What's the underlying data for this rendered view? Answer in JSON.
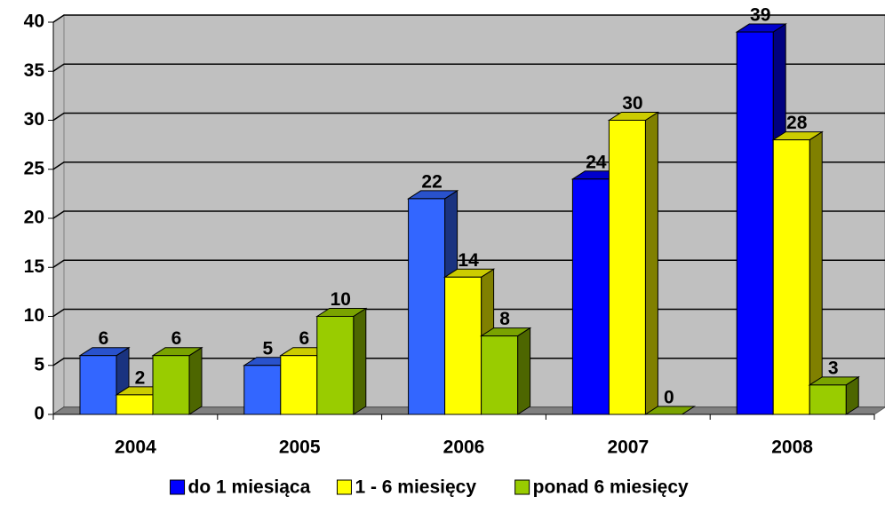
{
  "chart_data": {
    "type": "bar3d",
    "categories": [
      "2004",
      "2005",
      "2006",
      "2007",
      "2008"
    ],
    "series": [
      {
        "name": "do 1 miesiąca",
        "color": "#0000ff",
        "colors": [
          "#3366ff",
          "#3366ff",
          "#3366ff",
          "#0000ff",
          "#0000ff"
        ],
        "values": [
          6,
          5,
          22,
          24,
          39
        ]
      },
      {
        "name": "1 - 6 miesięcy",
        "color": "#ffff00",
        "values": [
          2,
          6,
          14,
          30,
          28
        ]
      },
      {
        "name": "ponad 6 miesięcy",
        "color": "#99cc00",
        "values": [
          6,
          10,
          8,
          0,
          3
        ]
      }
    ],
    "ylim": [
      0,
      40
    ],
    "yticks": [
      0,
      5,
      10,
      15,
      20,
      25,
      30,
      35,
      40
    ],
    "grid": true,
    "legend": "bottom"
  }
}
